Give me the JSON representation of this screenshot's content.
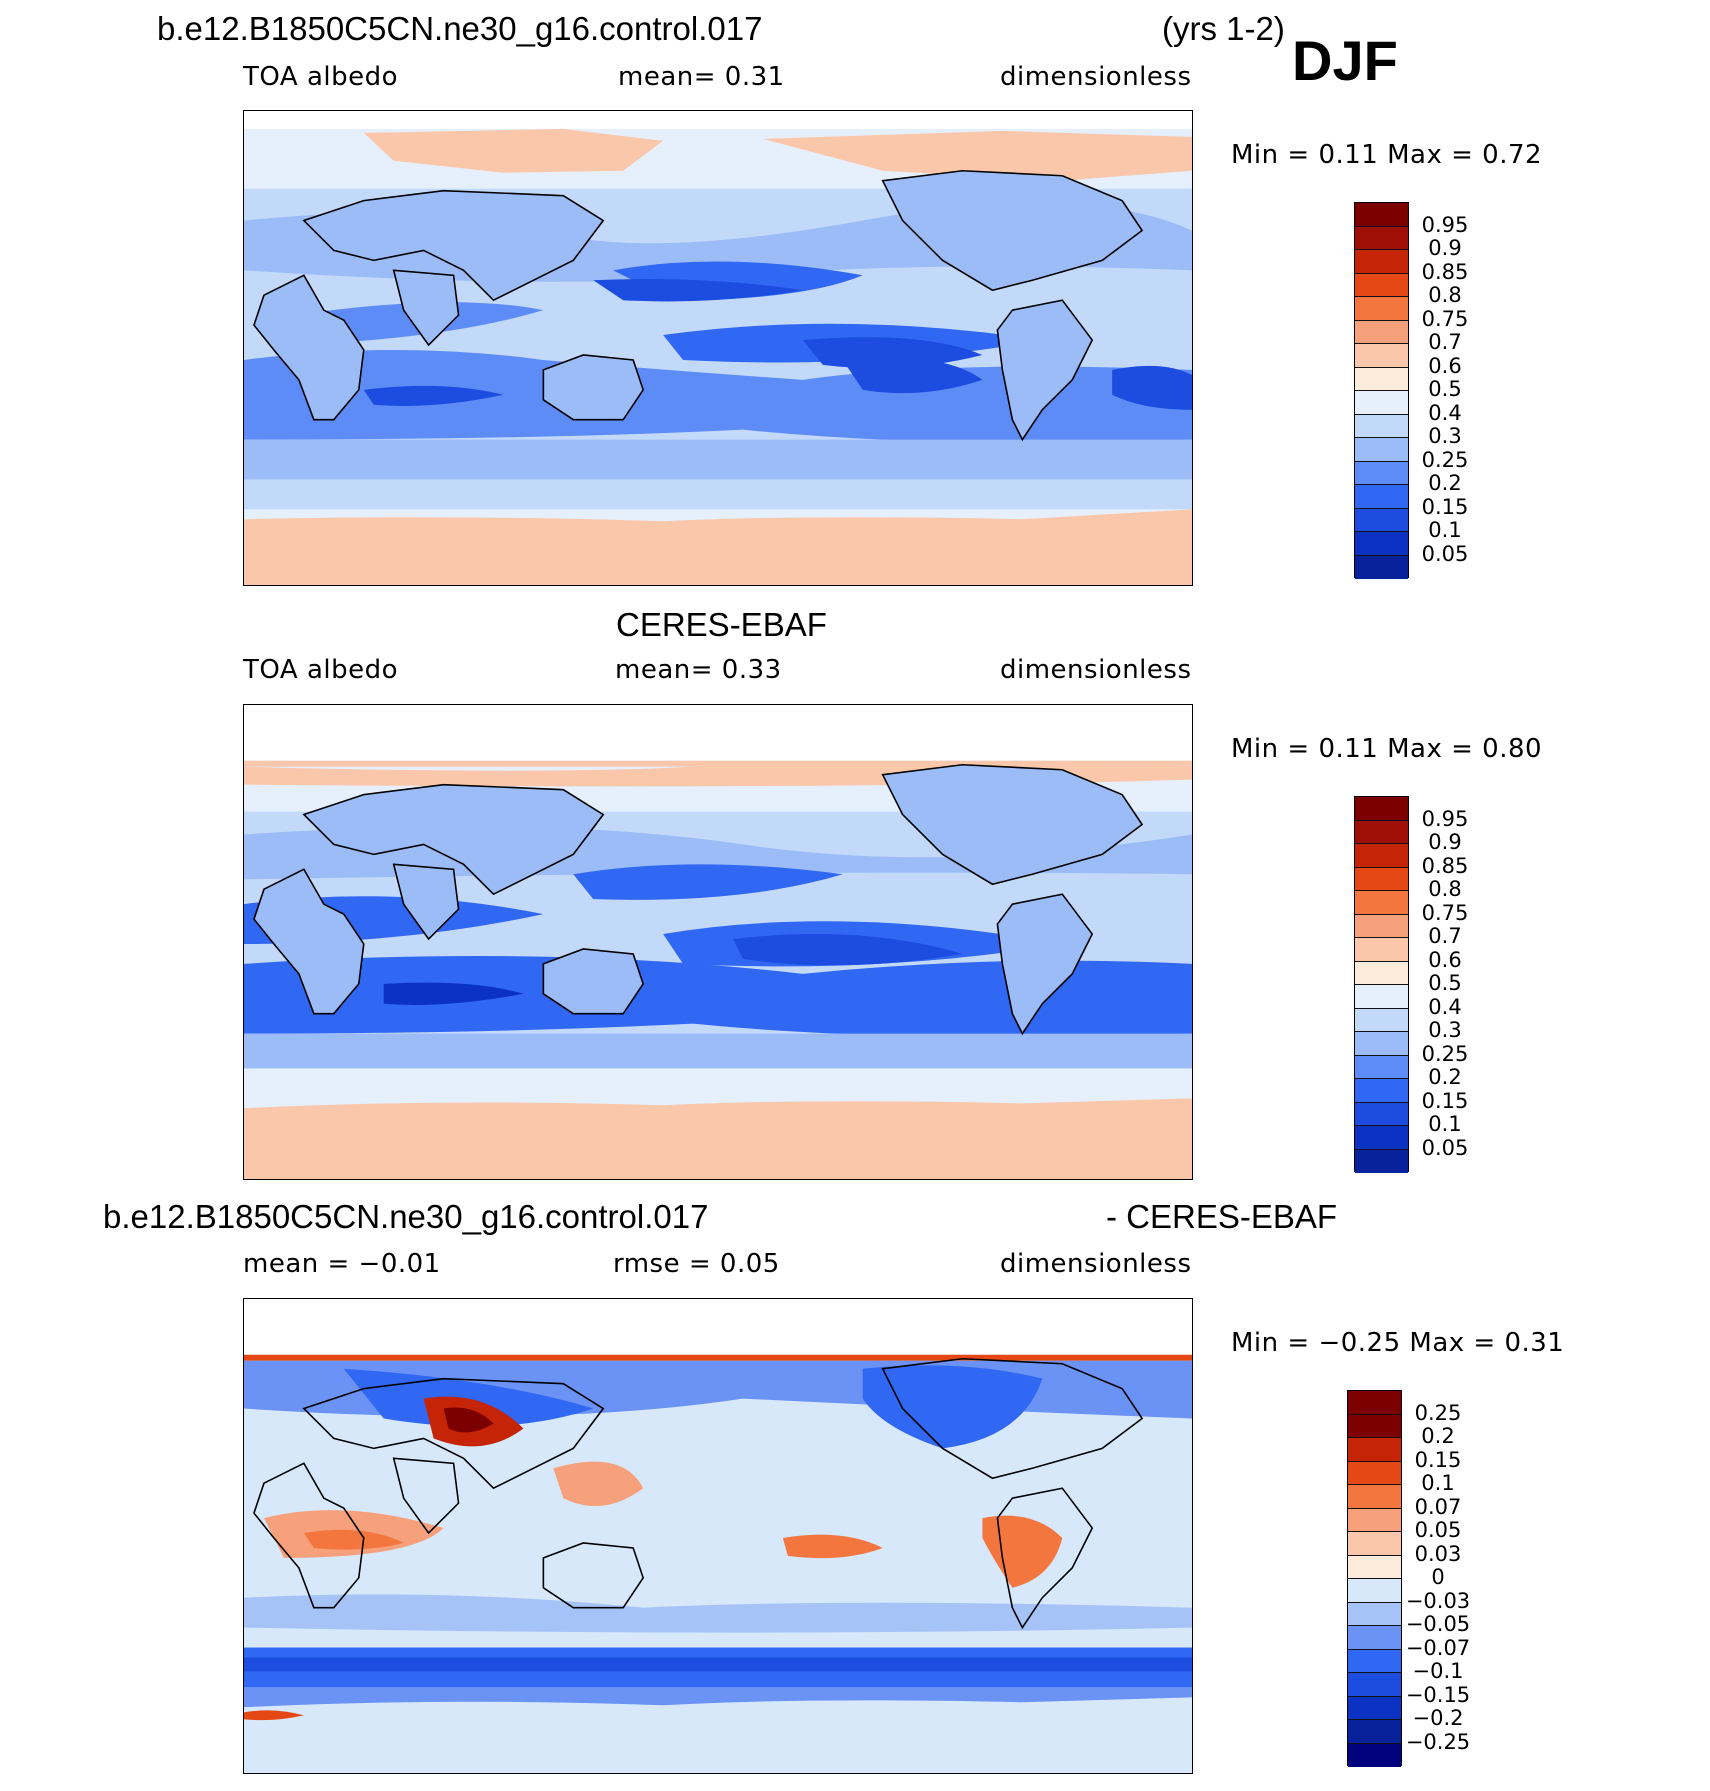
{
  "colors": {
    "seq": [
      "#02027f",
      "#08229c",
      "#0c32c4",
      "#1c4ce0",
      "#3067f3",
      "#5e8cf6",
      "#9bbcf7",
      "#c3d9fa",
      "#e5f0fc",
      "#fdebdc",
      "#fbc7ab",
      "#f6a07c",
      "#f3763e",
      "#e54814",
      "#c62407",
      "#a00f06",
      "#7c0000"
    ],
    "diff": [
      "#02027f",
      "#08229c",
      "#0c32c4",
      "#1c4ce0",
      "#3067f3",
      "#6a93f5",
      "#a6c3f8",
      "#d8e8fb",
      "#fdebdc",
      "#fbc7ab",
      "#f6a07c",
      "#f3763e",
      "#e54814",
      "#c62407",
      "#7c0000"
    ]
  },
  "header": {
    "case_name": "b.e12.B1850C5CN.ne30_g16.control.017",
    "years": "(yrs 1-2)",
    "season": "DJF"
  },
  "panel1": {
    "left": "TOA albedo",
    "mean": "mean=    0.31",
    "units": "dimensionless",
    "minmax": "Min =      0.11  Max =      0.72",
    "levels": [
      "0.95",
      "0.9",
      "0.85",
      "0.8",
      "0.75",
      "0.7",
      "0.6",
      "0.5",
      "0.4",
      "0.3",
      "0.25",
      "0.2",
      "0.15",
      "0.1",
      "0.05"
    ]
  },
  "panel2": {
    "title": "CERES-EBAF",
    "left": "TOA albedo",
    "mean": "mean=    0.33",
    "units": "dimensionless",
    "minmax": "Min =      0.11  Max =      0.80",
    "levels": [
      "0.95",
      "0.9",
      "0.85",
      "0.8",
      "0.75",
      "0.7",
      "0.6",
      "0.5",
      "0.4",
      "0.3",
      "0.25",
      "0.2",
      "0.15",
      "0.1",
      "0.05"
    ]
  },
  "panel3": {
    "title_left": "b.e12.B1850C5CN.ne30_g16.control.017",
    "title_right": "- CERES-EBAF",
    "mean": "mean  =   −0.01",
    "rmse": "rmse  =     0.05",
    "units": "dimensionless",
    "minmax": "Min =    −0.25  Max =      0.31",
    "levels": [
      "0.25",
      "0.2",
      "0.15",
      "0.1",
      "0.07",
      "0.05",
      "0.03",
      "0",
      "−0.03",
      "−0.05",
      "−0.07",
      "−0.1",
      "−0.15",
      "−0.2",
      "−0.25"
    ]
  }
}
